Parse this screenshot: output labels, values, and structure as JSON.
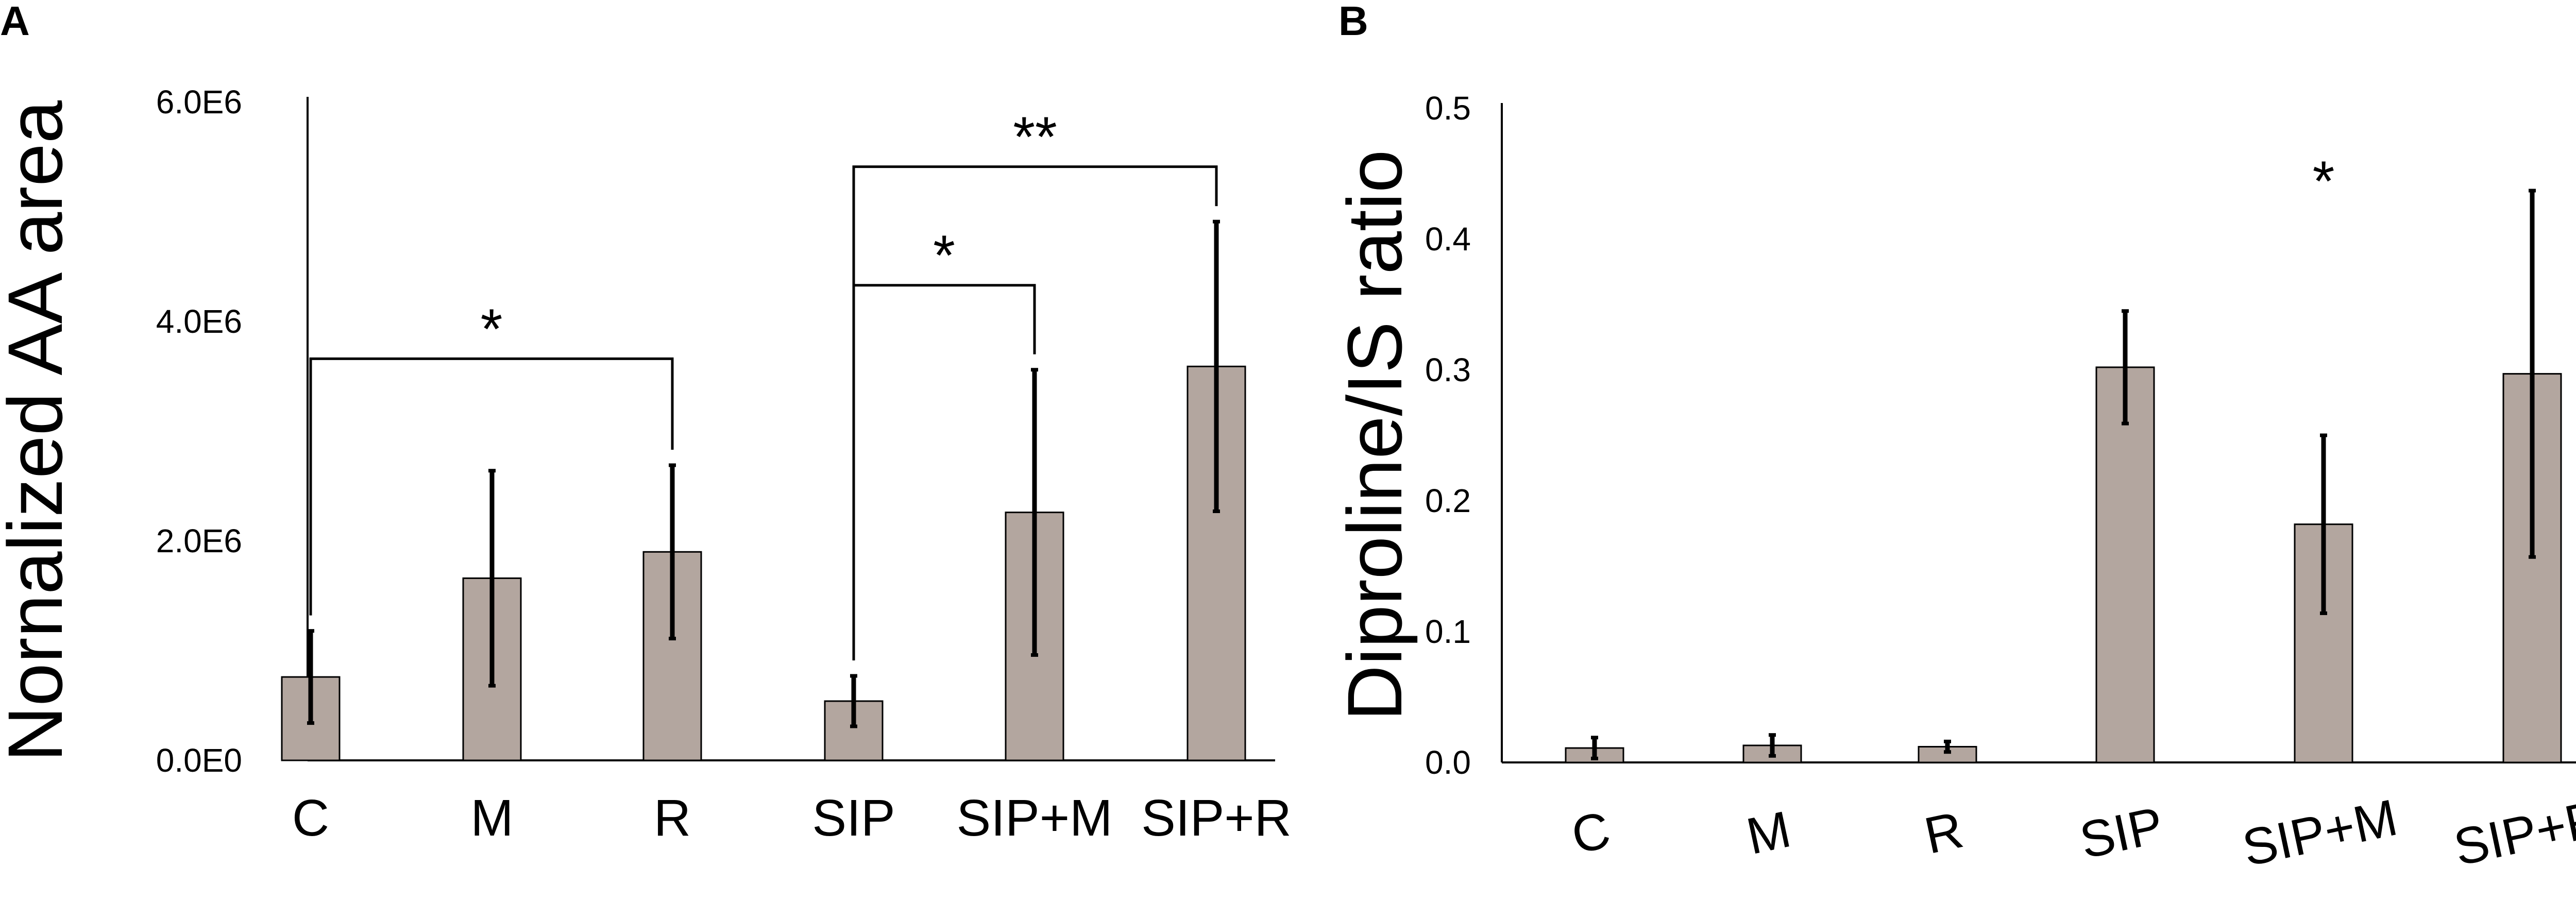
{
  "chart_data": [
    {
      "panel": "A",
      "type": "bar",
      "ylabel": "Nornalized AA area",
      "categories": [
        "C",
        "M",
        "R",
        "SIP",
        "SIP+M",
        "SIP+R"
      ],
      "values": [
        760000,
        1660000,
        1900000,
        540000,
        2260000,
        3590000
      ],
      "errors": [
        420000,
        980000,
        790000,
        230000,
        1300000,
        1320000
      ],
      "ylim": [
        0,
        6000000
      ],
      "yticks": [
        {
          "value": 0,
          "label": "0.0E0"
        },
        {
          "value": 2000000,
          "label": "2.0E6"
        },
        {
          "value": 4000000,
          "label": "4.0E6"
        },
        {
          "value": 6000000,
          "label": "6.0E6"
        }
      ],
      "significance": [
        {
          "from": 0,
          "to": 2,
          "label": "*",
          "level": 3660000
        },
        {
          "from": 3,
          "to": 4,
          "label": "*",
          "level": 4330000
        },
        {
          "from": 3,
          "to": 5,
          "label": "**",
          "level": 5410000
        }
      ],
      "stars": []
    },
    {
      "panel": "B",
      "type": "bar",
      "ylabel": "Diproline/IS ratio",
      "categories": [
        "C",
        "M",
        "R",
        "SIP",
        "SIP+M",
        "SIP+R"
      ],
      "values": [
        0.011,
        0.013,
        0.012,
        0.302,
        0.182,
        0.297
      ],
      "errors": [
        0.008,
        0.008,
        0.004,
        0.043,
        0.068,
        0.14
      ],
      "ylim": [
        0,
        0.5
      ],
      "yticks": [
        {
          "value": 0,
          "label": "0.0"
        },
        {
          "value": 0.1,
          "label": "0.1"
        },
        {
          "value": 0.2,
          "label": "0.2"
        },
        {
          "value": 0.3,
          "label": "0.3"
        },
        {
          "value": 0.4,
          "label": "0.4"
        },
        {
          "value": 0.5,
          "label": "0.5"
        }
      ],
      "significance": [],
      "stars": [
        {
          "category": 4,
          "label": "*",
          "value": 0.445
        }
      ]
    }
  ]
}
